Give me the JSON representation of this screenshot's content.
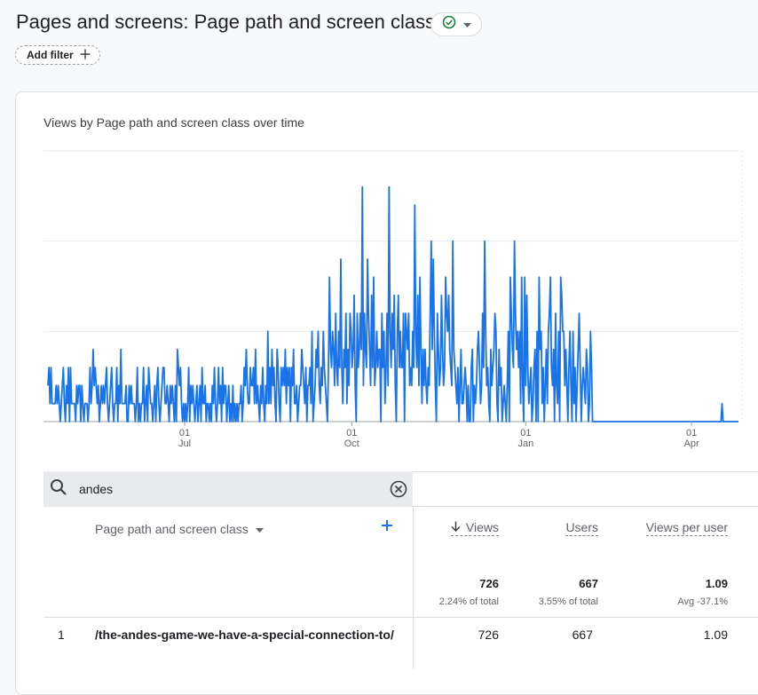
{
  "header": {
    "title": "Pages and screens: Page path and screen class",
    "add_filter_label": "Add filter"
  },
  "chart": {
    "title": "Views by Page path and screen class over time"
  },
  "chart_data": {
    "type": "line",
    "title": "Views by Page path and screen class over time",
    "xlabel": "",
    "ylabel": "",
    "x_ticks": [
      {
        "day": "01",
        "month": "Jul"
      },
      {
        "day": "01",
        "month": "Oct"
      },
      {
        "day": "01",
        "month": "Jan"
      },
      {
        "day": "01",
        "month": "Apr"
      }
    ],
    "ylim": [
      0,
      15
    ],
    "grid": true,
    "series": [
      {
        "color": "#1a73e8",
        "values": [
          2,
          3,
          1,
          3,
          1,
          1,
          1,
          1,
          2,
          1,
          2,
          1,
          0,
          1,
          2,
          3,
          1,
          0,
          2,
          1,
          3,
          0,
          3,
          1,
          1,
          1,
          1,
          0,
          2,
          1,
          2,
          2,
          0,
          2,
          1,
          0,
          1,
          1,
          1,
          0,
          1,
          3,
          1,
          2,
          4,
          2,
          3,
          2,
          1,
          2,
          0,
          1,
          2,
          1,
          2,
          1,
          2,
          3,
          1,
          0,
          1,
          2,
          3,
          1,
          0,
          1,
          1,
          3,
          0,
          2,
          1,
          4,
          1,
          1,
          1,
          1,
          2,
          0,
          0,
          2,
          1,
          2,
          1,
          1,
          1,
          0,
          1,
          3,
          0,
          1,
          0,
          1,
          1,
          3,
          0,
          1,
          2,
          0,
          3,
          2,
          1,
          1,
          0,
          1,
          2,
          0,
          2,
          3,
          1,
          0,
          1,
          2,
          3,
          3,
          1,
          1,
          2,
          1,
          0,
          2,
          1,
          2,
          1,
          0,
          2,
          0,
          4,
          3,
          2,
          3,
          1,
          0,
          1,
          0,
          1,
          0,
          1,
          3,
          0,
          2,
          1,
          2,
          1,
          0,
          1,
          2,
          0,
          1,
          2,
          0,
          3,
          1,
          1,
          2,
          0,
          1,
          1,
          0,
          1,
          0,
          2,
          1,
          3,
          1,
          0,
          1,
          3,
          1,
          2,
          0,
          3,
          1,
          2,
          2,
          0,
          1,
          2,
          0,
          1,
          0,
          2,
          0,
          1,
          0,
          1,
          0,
          1,
          1,
          2,
          0,
          1,
          3,
          2,
          4,
          2,
          1,
          1,
          3,
          2,
          2,
          3,
          1,
          4,
          1,
          2,
          1,
          0,
          2,
          1,
          3,
          1,
          0,
          2,
          1,
          5,
          1,
          3,
          1,
          4,
          2,
          3,
          1,
          0,
          4,
          3,
          1,
          0,
          3,
          2,
          3,
          2,
          4,
          1,
          3,
          2,
          3,
          0,
          3,
          2,
          4,
          1,
          1,
          2,
          0,
          1,
          2,
          2,
          4,
          3,
          2,
          1,
          3,
          0,
          2,
          2,
          3,
          1,
          5,
          0,
          1,
          2,
          4,
          3,
          5,
          2,
          1,
          3,
          2,
          5,
          3,
          2,
          1,
          0,
          3,
          8,
          4,
          3,
          5,
          4,
          2,
          6,
          3,
          2,
          5,
          3,
          9,
          3,
          1,
          4,
          3,
          6,
          1,
          4,
          2,
          6,
          5,
          3,
          4,
          7,
          2,
          0,
          6,
          3,
          4,
          6,
          4,
          13,
          2,
          6,
          4,
          3,
          9,
          6,
          4,
          2,
          7,
          3,
          8,
          2,
          3,
          5,
          3,
          4,
          4,
          0,
          6,
          3,
          5,
          1,
          3,
          6,
          2,
          13,
          5,
          3,
          6,
          4,
          7,
          2,
          0,
          5,
          7,
          3,
          5,
          3,
          3,
          6,
          0,
          6,
          5,
          4,
          6,
          2,
          3,
          2,
          5,
          3,
          12,
          5,
          3,
          7,
          2,
          8,
          4,
          1,
          4,
          2,
          4,
          2,
          1,
          3,
          2,
          6,
          10,
          4,
          9,
          5,
          2,
          0,
          6,
          4,
          2,
          3,
          7,
          4,
          2,
          3,
          8,
          6,
          5,
          7,
          4,
          3,
          2,
          10,
          4,
          3,
          2,
          1,
          3,
          0,
          2,
          4,
          1,
          1,
          2,
          3,
          2,
          0,
          2,
          0,
          0,
          3,
          4,
          0,
          2,
          1,
          2,
          4,
          5,
          3,
          1,
          2,
          6,
          3,
          10,
          5,
          2,
          3,
          1,
          0,
          4,
          2,
          3,
          4,
          6,
          5,
          1,
          0,
          4,
          2,
          3,
          0,
          1,
          2,
          1,
          0,
          2,
          5,
          0,
          8,
          6,
          4,
          3,
          10,
          6,
          4,
          5,
          3,
          5,
          1,
          8,
          2,
          0,
          8,
          2,
          7,
          3,
          1,
          2,
          3,
          0,
          1,
          3,
          4,
          0,
          5,
          0,
          8,
          4,
          5,
          1,
          3,
          0,
          2,
          4,
          1,
          5,
          6,
          8,
          3,
          2,
          4,
          0,
          6,
          2,
          1,
          5,
          0,
          8,
          7,
          5,
          5,
          2,
          4,
          2,
          0,
          3,
          5,
          2,
          0,
          5,
          1,
          3,
          0,
          2,
          4,
          6,
          3,
          0,
          2,
          3,
          2,
          1,
          4,
          3,
          0,
          1,
          5,
          3,
          0,
          0,
          0,
          0,
          0,
          0,
          0,
          0,
          0,
          0,
          0,
          0,
          0,
          0,
          0,
          0,
          0,
          0,
          0,
          0,
          0,
          0,
          0,
          0,
          0,
          0,
          0,
          0,
          0,
          0,
          0,
          0,
          0,
          0,
          0,
          0,
          0,
          0,
          0,
          0,
          0,
          0,
          0,
          0,
          0,
          0,
          0,
          0,
          0,
          0,
          0,
          0,
          0,
          0,
          0,
          0,
          0,
          0,
          0,
          0,
          0,
          0,
          0,
          0,
          0,
          0,
          0,
          0,
          0,
          0,
          0,
          0,
          0,
          0,
          0,
          0,
          0,
          0,
          0,
          0,
          0,
          0,
          0,
          0,
          0,
          0,
          0,
          0,
          0,
          0,
          0,
          0,
          0,
          0,
          0,
          0,
          0,
          0,
          0,
          0,
          0,
          0,
          0,
          0,
          0,
          0,
          0,
          0,
          0,
          0,
          0,
          0,
          0,
          0,
          0,
          0,
          0,
          0,
          0,
          0,
          0,
          0,
          0,
          0,
          0,
          0,
          1,
          0,
          0,
          0,
          0,
          0,
          0,
          0,
          0,
          0,
          0,
          0,
          0,
          0,
          0,
          0,
          0
        ]
      }
    ]
  },
  "search": {
    "value": "andes"
  },
  "table": {
    "dimension_header": "Page path and screen class",
    "columns": [
      {
        "label": "Views",
        "sorted": true,
        "total": "726",
        "sub": "2.24% of total"
      },
      {
        "label": "Users",
        "total": "667",
        "sub": "3.55% of total"
      },
      {
        "label": "Views per user",
        "total": "1.09",
        "sub": "Avg -37.1%"
      }
    ],
    "rows": [
      {
        "index": "1",
        "path": "/the-andes-game-we-have-a-special-connection-to/",
        "views": "726",
        "users": "667",
        "views_per_user": "1.09"
      }
    ]
  }
}
